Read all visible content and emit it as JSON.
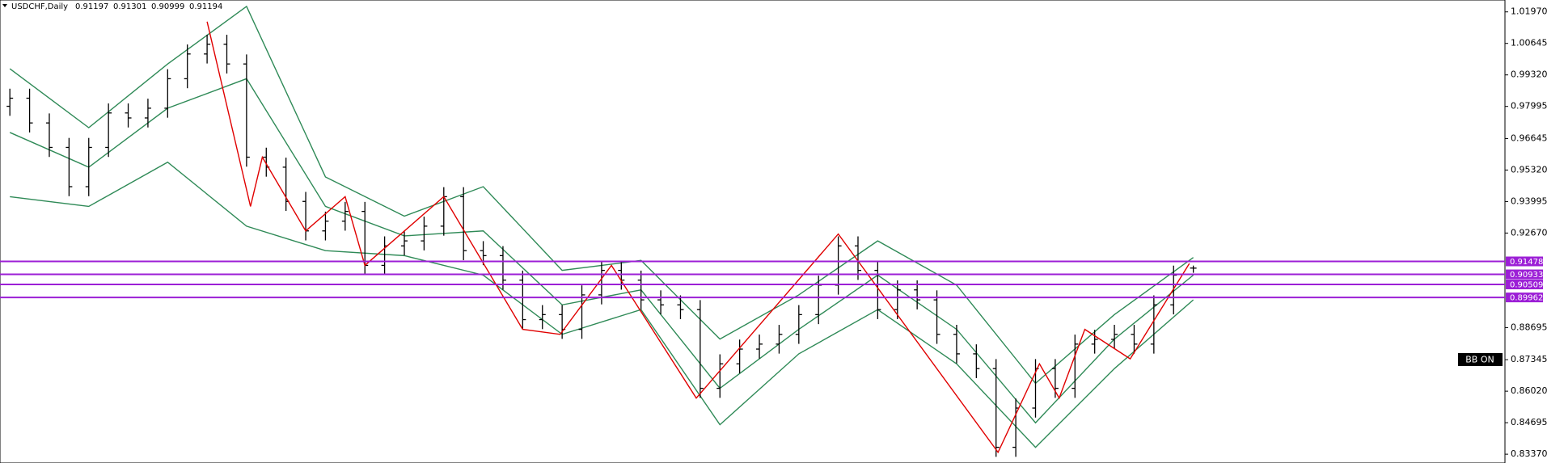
{
  "chart_data": {
    "type": "ohlc",
    "symbol": "USDCHF,Daily",
    "color": "#000000",
    "open": [
      0.98,
      0.9834,
      0.973,
      0.9627,
      0.9462,
      0.9627,
      0.9772,
      0.9751,
      0.9792,
      0.9916,
      1.002,
      1.0061,
      0.9978,
      0.9586,
      0.9544,
      0.94,
      0.9276,
      0.9317,
      0.9358,
      0.9131,
      0.9213,
      0.9234,
      0.9296,
      0.942,
      0.9193,
      0.9172,
      0.9069,
      0.8903,
      0.8924,
      0.8862,
      0.9007,
      0.911,
      0.9069,
      0.8986,
      0.8965,
      0.8945,
      0.8614,
      0.8717,
      0.8779,
      0.88,
      0.8841,
      0.8924,
      0.9048,
      0.9213,
      0.911,
      0.8945,
      0.9028,
      0.8986,
      0.8841,
      0.8759,
      0.8697,
      0.8366,
      0.8531,
      0.8697,
      0.8614,
      0.88,
      0.882,
      0.8841,
      0.88,
      0.8965,
      0.91197
    ],
    "high": [
      0.9874,
      0.9874,
      0.977,
      0.9667,
      0.9667,
      0.9812,
      0.9812,
      0.9832,
      0.9956,
      1.006,
      1.0101,
      1.0101,
      1.0018,
      0.9626,
      0.9584,
      0.944,
      0.9357,
      0.9398,
      0.9398,
      0.9253,
      0.9274,
      0.9336,
      0.946,
      0.946,
      0.9233,
      0.9212,
      0.9109,
      0.8964,
      0.8964,
      0.9047,
      0.915,
      0.915,
      0.9109,
      0.9026,
      0.9005,
      0.8985,
      0.8757,
      0.8819,
      0.884,
      0.8881,
      0.8964,
      0.9088,
      0.9253,
      0.9253,
      0.915,
      0.9068,
      0.9068,
      0.9026,
      0.8881,
      0.8799,
      0.8737,
      0.8571,
      0.8737,
      0.8737,
      0.884,
      0.886,
      0.8881,
      0.8881,
      0.9005,
      0.913,
      0.91301
    ],
    "low": [
      0.976,
      0.969,
      0.9587,
      0.9422,
      0.9422,
      0.9587,
      0.9711,
      0.9711,
      0.9752,
      0.9876,
      0.998,
      0.9938,
      0.9546,
      0.9504,
      0.936,
      0.9236,
      0.9236,
      0.9277,
      0.9091,
      0.9091,
      0.9173,
      0.9194,
      0.9256,
      0.9153,
      0.9132,
      0.9029,
      0.8863,
      0.8863,
      0.8822,
      0.8822,
      0.8967,
      0.9029,
      0.8946,
      0.8925,
      0.8905,
      0.8574,
      0.8574,
      0.8677,
      0.8739,
      0.876,
      0.8801,
      0.8884,
      0.9008,
      0.907,
      0.8905,
      0.8905,
      0.8946,
      0.8801,
      0.8719,
      0.8657,
      0.8326,
      0.8326,
      0.8491,
      0.8574,
      0.8574,
      0.876,
      0.878,
      0.876,
      0.876,
      0.8925,
      0.90999
    ],
    "close": [
      0.9834,
      0.973,
      0.9627,
      0.9462,
      0.9627,
      0.9772,
      0.9751,
      0.9792,
      0.9916,
      1.002,
      1.0061,
      0.9978,
      0.9586,
      0.9544,
      0.94,
      0.9276,
      0.9317,
      0.9358,
      0.9131,
      0.9213,
      0.9234,
      0.9296,
      0.942,
      0.9193,
      0.9172,
      0.9069,
      0.8903,
      0.8924,
      0.8862,
      0.9007,
      0.911,
      0.9069,
      0.8986,
      0.8965,
      0.8945,
      0.8614,
      0.8717,
      0.8779,
      0.88,
      0.8841,
      0.8924,
      0.9048,
      0.9213,
      0.911,
      0.8945,
      0.9028,
      0.8986,
      0.8841,
      0.8759,
      0.8697,
      0.8366,
      0.8531,
      0.8697,
      0.8614,
      0.88,
      0.882,
      0.8841,
      0.88,
      0.8965,
      0.909,
      0.91194
    ],
    "xlim": [
      -0.5,
      75.8
    ],
    "ylim": [
      0.83,
      1.0247
    ],
    "yticks": [
      {
        "value": 1.0197,
        "label": "1.01970"
      },
      1.00645,
      {
        "value": 0.9932,
        "label": "0.99320"
      },
      0.97995,
      0.96645,
      {
        "value": 0.9532,
        "label": "0.95320"
      },
      0.93995,
      {
        "value": 0.9267,
        "label": "0.92670"
      },
      0.88695,
      0.87345,
      {
        "value": 0.8602,
        "label": "0.86020"
      },
      0.84695,
      {
        "value": 0.8337,
        "label": "0.83370"
      }
    ],
    "bands": {
      "color": "#2f8a57",
      "x": [
        0,
        4,
        8,
        12,
        16,
        20,
        24,
        28,
        32,
        36,
        40,
        44,
        48,
        52,
        56,
        60
      ],
      "upper": [
        0.9958,
        0.971,
        0.9978,
        1.022,
        0.9503,
        0.9338,
        0.9462,
        0.911,
        0.9152,
        0.8821,
        0.9007,
        0.9234,
        0.9048,
        0.8635,
        0.8924,
        0.9164
      ],
      "middle": [
        0.969,
        0.9544,
        0.9792,
        0.9916,
        0.9379,
        0.9255,
        0.9276,
        0.8965,
        0.9028,
        0.8614,
        0.8862,
        0.909,
        0.8862,
        0.8469,
        0.8821,
        0.909
      ],
      "lower": [
        0.942,
        0.9379,
        0.9565,
        0.9296,
        0.9193,
        0.9172,
        0.909,
        0.8841,
        0.8945,
        0.8461,
        0.8759,
        0.8945,
        0.8717,
        0.8366,
        0.8697,
        0.8986
      ]
    },
    "zigzag": {
      "color": "#e00000",
      "x": [
        10,
        12.2,
        12.8,
        15,
        17,
        18,
        22,
        26,
        27.9,
        30.5,
        34.8,
        42,
        50.1,
        52.2,
        53.2,
        54.5,
        56.8,
        59.8
      ],
      "y": [
        1.0156,
        0.9379,
        0.9586,
        0.9276,
        0.942,
        0.9131,
        0.942,
        0.8862,
        0.8841,
        0.9131,
        0.8573,
        0.9263,
        0.8345,
        0.8717,
        0.8573,
        0.8862,
        0.8738,
        0.9139
      ]
    },
    "levels": {
      "color": "#9c1fd6",
      "values": [
        0.91478,
        0.90933,
        0.90509,
        0.89962
      ]
    },
    "annotation": "BB ON"
  }
}
